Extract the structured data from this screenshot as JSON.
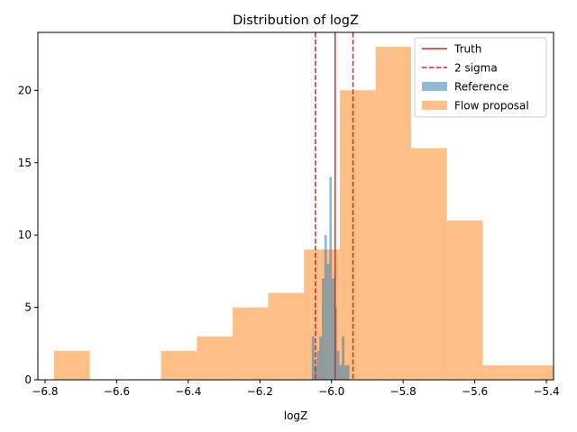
{
  "chart_data": {
    "type": "histogram",
    "title": "Distribution of logZ",
    "xlabel": "logZ",
    "ylabel": "",
    "xlim": [
      -6.82,
      -5.38
    ],
    "ylim": [
      0,
      24
    ],
    "xticks": [
      -6.8,
      -6.6,
      -6.4,
      -6.2,
      -6.0,
      -5.8,
      -5.6,
      -5.4
    ],
    "xtick_labels": [
      "−6.8",
      "−6.6",
      "−6.4",
      "−6.2",
      "−6.0",
      "−5.8",
      "−5.6",
      "−5.4"
    ],
    "yticks": [
      0,
      5,
      10,
      15,
      20
    ],
    "ytick_labels": [
      "0",
      "5",
      "10",
      "15",
      "20"
    ],
    "grid": false,
    "legend_position": "top-right",
    "lines": [
      {
        "name": "Truth",
        "x": -5.99,
        "style": "solid",
        "color": "#d62728"
      },
      {
        "name": "2 sigma",
        "x": [
          -6.045,
          -5.94
        ],
        "style": "dashed",
        "color": "#d62728"
      }
    ],
    "series": [
      {
        "name": "Flow proposal",
        "color": "#ff7f0e",
        "alpha": 0.5,
        "bins": [
          {
            "x0": -6.775,
            "x1": -6.675,
            "count": 2
          },
          {
            "x0": -6.675,
            "x1": -6.575,
            "count": 0
          },
          {
            "x0": -6.575,
            "x1": -6.476,
            "count": 0
          },
          {
            "x0": -6.476,
            "x1": -6.376,
            "count": 2
          },
          {
            "x0": -6.376,
            "x1": -6.276,
            "count": 3
          },
          {
            "x0": -6.276,
            "x1": -6.177,
            "count": 5
          },
          {
            "x0": -6.177,
            "x1": -6.077,
            "count": 6
          },
          {
            "x0": -6.077,
            "x1": -5.977,
            "count": 9
          },
          {
            "x0": -5.977,
            "x1": -5.877,
            "count": 20
          },
          {
            "x0": -5.877,
            "x1": -5.778,
            "count": 23
          },
          {
            "x0": -5.778,
            "x1": -5.678,
            "count": 16
          },
          {
            "x0": -5.678,
            "x1": -5.578,
            "count": 11
          },
          {
            "x0": -5.578,
            "x1": -5.478,
            "count": 1
          },
          {
            "x0": -5.478,
            "x1": -5.379,
            "count": 1
          }
        ]
      },
      {
        "name": "Reference",
        "color": "#1f77b4",
        "alpha": 0.5,
        "bins": [
          {
            "x0": -6.055,
            "x1": -6.048,
            "count": 3
          },
          {
            "x0": -6.048,
            "x1": -6.041,
            "count": 1
          },
          {
            "x0": -6.041,
            "x1": -6.034,
            "count": 2
          },
          {
            "x0": -6.034,
            "x1": -6.027,
            "count": 3
          },
          {
            "x0": -6.027,
            "x1": -6.02,
            "count": 7
          },
          {
            "x0": -6.02,
            "x1": -6.013,
            "count": 10
          },
          {
            "x0": -6.013,
            "x1": -6.006,
            "count": 8
          },
          {
            "x0": -6.006,
            "x1": -5.999,
            "count": 14
          },
          {
            "x0": -5.999,
            "x1": -5.992,
            "count": 7
          },
          {
            "x0": -5.992,
            "x1": -5.985,
            "count": 5
          },
          {
            "x0": -5.985,
            "x1": -5.978,
            "count": 2
          },
          {
            "x0": -5.978,
            "x1": -5.971,
            "count": 1
          },
          {
            "x0": -5.971,
            "x1": -5.964,
            "count": 3
          },
          {
            "x0": -5.964,
            "x1": -5.957,
            "count": 1
          },
          {
            "x0": -5.957,
            "x1": -5.95,
            "count": 1
          }
        ]
      }
    ],
    "legend": [
      "Truth",
      "2 sigma",
      "Reference",
      "Flow proposal"
    ]
  }
}
